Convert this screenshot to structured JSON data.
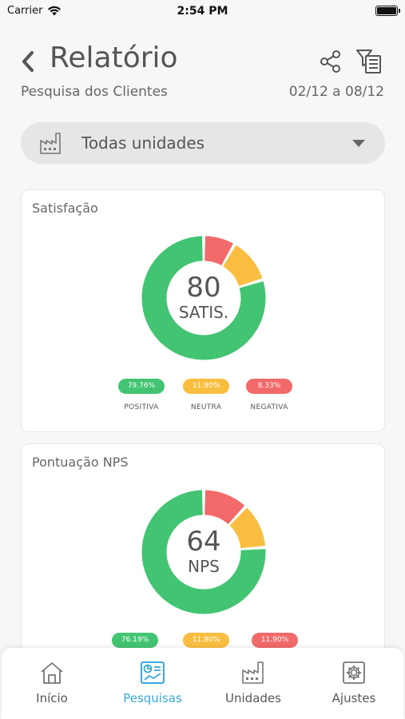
{
  "status_bar": {
    "carrier": "Carrier",
    "time": "2:54 PM"
  },
  "header": {
    "title": "Relatório",
    "subtitle": "Pesquisa dos Clientes",
    "date_range": "02/12 a 08/12",
    "icons": [
      "back-chevron-icon",
      "share-icon",
      "filter-list-icon"
    ]
  },
  "unit_selector": {
    "value": "Todas unidades",
    "icon": "factory-icon"
  },
  "cards": [
    {
      "title": "Satisfação",
      "center_value": "80",
      "center_label": "SATIS.",
      "segments": [
        {
          "label": "POSITIVA",
          "display": "79.76%",
          "value": 79.76,
          "color": "#42c472"
        },
        {
          "label": "NEUTRA",
          "display": "11.90%",
          "value": 11.9,
          "color": "#f9be41"
        },
        {
          "label": "NEGATIVA",
          "display": "8.33%",
          "value": 8.33,
          "color": "#f26a6a"
        }
      ]
    },
    {
      "title": "Pontuação NPS",
      "center_value": "64",
      "center_label": "NPS",
      "segments": [
        {
          "label": "",
          "display": "76.19%",
          "value": 76.19,
          "color": "#42c472"
        },
        {
          "label": "",
          "display": "11.90%",
          "value": 11.9,
          "color": "#f9be41"
        },
        {
          "label": "",
          "display": "11.90%",
          "value": 11.9,
          "color": "#f26a6a"
        }
      ]
    }
  ],
  "tabs": [
    {
      "label": "Início",
      "icon": "home-icon",
      "active": false
    },
    {
      "label": "Pesquisas",
      "icon": "survey-chart-icon",
      "active": true
    },
    {
      "label": "Unidades",
      "icon": "factory-icon",
      "active": false
    },
    {
      "label": "Ajustes",
      "icon": "gear-icon",
      "active": false
    }
  ],
  "colors": {
    "accent": "#3aa8d8",
    "positive": "#42c472",
    "neutral": "#f9be41",
    "negative": "#f26a6a"
  }
}
